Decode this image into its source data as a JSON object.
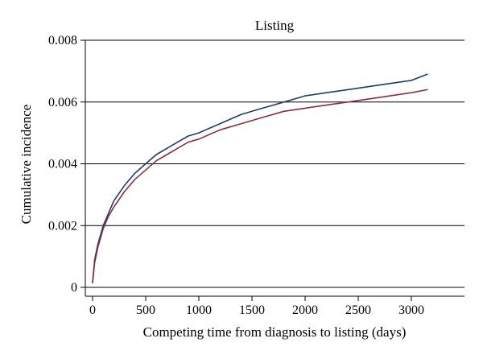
{
  "chart_data": {
    "type": "line",
    "title": "Listing",
    "xlabel": "Competing time from diagnosis to listing (days)",
    "ylabel": "Cumulative incidence",
    "xlim": [
      0,
      3500
    ],
    "ylim": [
      0,
      0.008
    ],
    "xticks": [
      0,
      500,
      1000,
      1500,
      2000,
      2500,
      3000
    ],
    "xtick_labels": [
      "0",
      "500",
      "1000",
      "1500",
      "2000",
      "2500",
      "3000"
    ],
    "yticks": [
      0,
      0.002,
      0.004,
      0.006,
      0.008
    ],
    "ytick_labels": [
      "0",
      "0.002",
      "0.004",
      "0.006",
      "0.008"
    ],
    "grid": "horizontal",
    "legend": "none",
    "series": [
      {
        "color": "#1f3d6b",
        "x": [
          0,
          20,
          50,
          100,
          150,
          200,
          300,
          400,
          500,
          600,
          700,
          800,
          900,
          1000,
          1200,
          1400,
          1600,
          1800,
          2000,
          2200,
          2400,
          2600,
          2800,
          3000,
          3150
        ],
        "y": [
          0.00015,
          0.0009,
          0.0014,
          0.002,
          0.0024,
          0.0028,
          0.0033,
          0.0037,
          0.004,
          0.0043,
          0.0045,
          0.0047,
          0.0049,
          0.005,
          0.0053,
          0.0056,
          0.0058,
          0.006,
          0.0062,
          0.0063,
          0.0064,
          0.0065,
          0.0066,
          0.0067,
          0.0069
        ]
      },
      {
        "color": "#8b2e3c",
        "x": [
          0,
          20,
          50,
          100,
          150,
          200,
          300,
          400,
          500,
          600,
          700,
          800,
          900,
          1000,
          1200,
          1400,
          1600,
          1800,
          2000,
          2200,
          2400,
          2600,
          2800,
          3000,
          3150
        ],
        "y": [
          0.00015,
          0.0008,
          0.0013,
          0.0019,
          0.0023,
          0.0026,
          0.0031,
          0.0035,
          0.0038,
          0.0041,
          0.0043,
          0.0045,
          0.0047,
          0.0048,
          0.0051,
          0.0053,
          0.0055,
          0.0057,
          0.0058,
          0.0059,
          0.006,
          0.0061,
          0.0062,
          0.0063,
          0.0064
        ]
      }
    ]
  }
}
